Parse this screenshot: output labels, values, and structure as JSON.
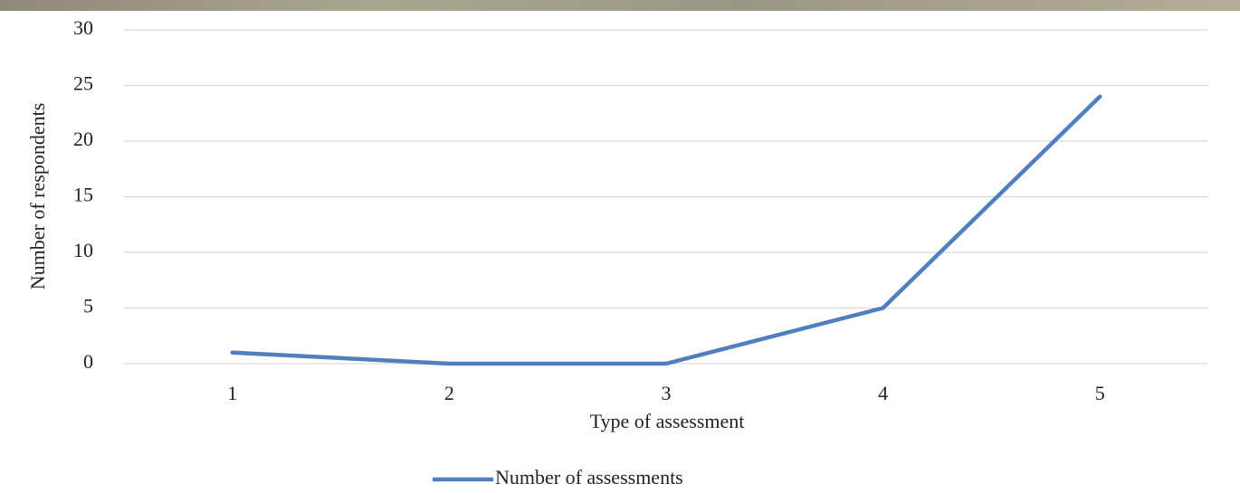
{
  "chart_data": {
    "type": "line",
    "x_label": "Type of assessment",
    "y_label": "Number of respondents",
    "categories": [
      "1",
      "2",
      "3",
      "4",
      "5"
    ],
    "series": [
      {
        "name": "Number of assessments",
        "color": "#4f7fbe",
        "values": [
          1,
          0,
          0,
          5,
          24
        ]
      }
    ],
    "ylim": [
      0,
      30
    ],
    "yticks": [
      0,
      5,
      10,
      15,
      20,
      25,
      30
    ],
    "grid": true,
    "legend": "bottom"
  }
}
